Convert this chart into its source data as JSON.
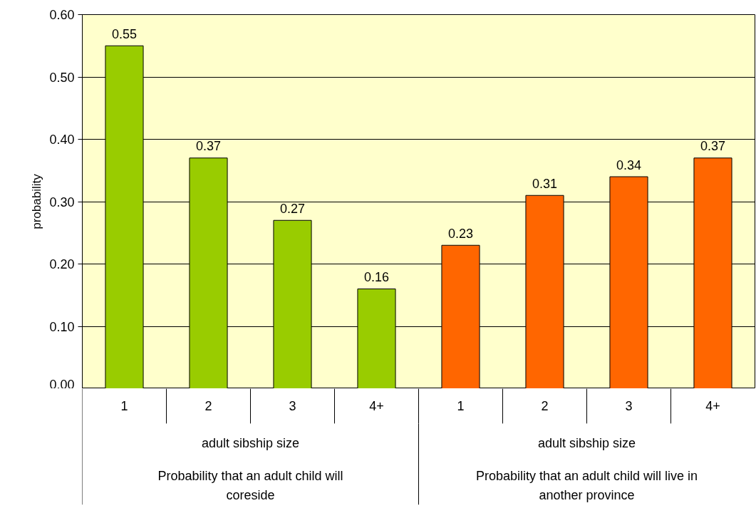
{
  "chart_data": {
    "type": "bar",
    "ylabel": "probability",
    "xlabel": "adult sibship size",
    "categories": [
      "1",
      "2",
      "3",
      "4+",
      "1",
      "2",
      "3",
      "4+"
    ],
    "values": [
      0.55,
      0.37,
      0.27,
      0.16,
      0.23,
      0.31,
      0.34,
      0.37
    ],
    "colors": [
      "#99cc00",
      "#99cc00",
      "#99cc00",
      "#99cc00",
      "#ff6600",
      "#ff6600",
      "#ff6600",
      "#ff6600"
    ],
    "annotations": [
      "Probability that an adult child will coreside",
      "Probability that an adult child will live in another province"
    ],
    "ylim": [
      0,
      0.6
    ],
    "yticks": [
      {
        "value": 0,
        "label": "0.00"
      },
      {
        "value": 0.1,
        "label": "0.10"
      },
      {
        "value": 0.2,
        "label": "0.20"
      },
      {
        "value": 0.3,
        "label": "0.30"
      },
      {
        "value": 0.4,
        "label": "0.40"
      },
      {
        "value": 0.5,
        "label": "0.50"
      },
      {
        "value": 0.6,
        "label": "0.60"
      }
    ],
    "grid": "y",
    "data_labels": true
  }
}
